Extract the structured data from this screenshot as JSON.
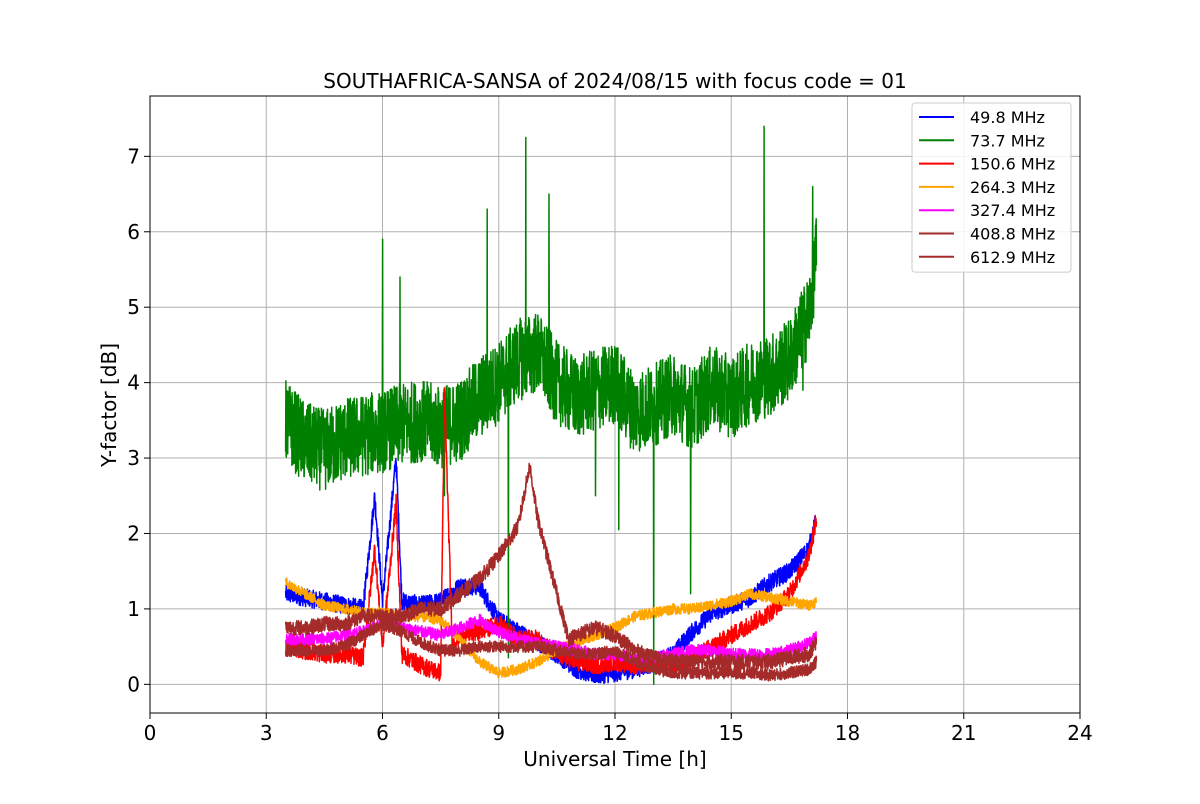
{
  "chart_data": {
    "type": "line",
    "title": "SOUTHAFRICA-SANSA of 2024/08/15 with focus code = 01",
    "xlabel": "Universal Time [h]",
    "ylabel": "Y-factor [dB]",
    "xlim": [
      0,
      24
    ],
    "ylim": [
      -0.38,
      7.8
    ],
    "xticks": [
      0,
      3,
      6,
      9,
      12,
      15,
      18,
      21,
      24
    ],
    "yticks": [
      0,
      1,
      2,
      3,
      4,
      5,
      6,
      7
    ],
    "grid": true,
    "legend_position": "top-right",
    "series": [
      {
        "name": " 49.8 MHz",
        "color": "#0000ff",
        "points": [
          [
            3.5,
            1.2
          ],
          [
            4.0,
            1.15
          ],
          [
            4.5,
            1.1
          ],
          [
            5.0,
            1.05
          ],
          [
            5.5,
            1.0
          ],
          [
            5.8,
            2.5
          ],
          [
            6.0,
            1.1
          ],
          [
            6.35,
            3.0
          ],
          [
            6.5,
            1.1
          ],
          [
            7.0,
            1.05
          ],
          [
            7.5,
            1.1
          ],
          [
            8.0,
            1.3
          ],
          [
            8.5,
            1.3
          ],
          [
            9.0,
            0.85
          ],
          [
            9.5,
            0.7
          ],
          [
            10.0,
            0.55
          ],
          [
            10.5,
            0.4
          ],
          [
            11.0,
            0.2
          ],
          [
            11.5,
            0.12
          ],
          [
            12.0,
            0.15
          ],
          [
            12.5,
            0.2
          ],
          [
            13.0,
            0.28
          ],
          [
            13.5,
            0.4
          ],
          [
            14.0,
            0.7
          ],
          [
            14.5,
            0.95
          ],
          [
            15.0,
            1.05
          ],
          [
            15.5,
            1.15
          ],
          [
            16.0,
            1.35
          ],
          [
            16.5,
            1.5
          ],
          [
            17.0,
            1.8
          ],
          [
            17.2,
            2.2
          ]
        ],
        "noise": 0.12
      },
      {
        "name": " 73.7 MHz",
        "color": "#008000",
        "points": [
          [
            3.5,
            3.5
          ],
          [
            4.0,
            3.2
          ],
          [
            4.5,
            3.1
          ],
          [
            5.0,
            3.25
          ],
          [
            5.5,
            3.3
          ],
          [
            6.0,
            3.35
          ],
          [
            6.5,
            3.45
          ],
          [
            7.0,
            3.5
          ],
          [
            7.5,
            3.4
          ],
          [
            8.0,
            3.5
          ],
          [
            8.5,
            3.8
          ],
          [
            9.0,
            4.0
          ],
          [
            9.5,
            4.3
          ],
          [
            10.0,
            4.4
          ],
          [
            10.5,
            4.0
          ],
          [
            11.0,
            3.8
          ],
          [
            11.5,
            3.9
          ],
          [
            12.0,
            4.0
          ],
          [
            12.5,
            3.6
          ],
          [
            13.0,
            3.7
          ],
          [
            13.5,
            3.85
          ],
          [
            14.0,
            3.65
          ],
          [
            14.5,
            3.95
          ],
          [
            15.0,
            3.8
          ],
          [
            15.5,
            4.0
          ],
          [
            16.0,
            4.1
          ],
          [
            16.5,
            4.3
          ],
          [
            17.0,
            4.9
          ],
          [
            17.2,
            5.7
          ]
        ],
        "noise": 0.55,
        "spikes": [
          [
            6.0,
            5.9
          ],
          [
            6.45,
            5.4
          ],
          [
            7.6,
            2.5
          ],
          [
            8.7,
            6.3
          ],
          [
            9.25,
            0.35
          ],
          [
            9.7,
            7.25
          ],
          [
            10.3,
            6.5
          ],
          [
            11.5,
            2.5
          ],
          [
            12.1,
            2.05
          ],
          [
            13.0,
            0.0
          ],
          [
            13.95,
            1.2
          ],
          [
            15.85,
            7.4
          ],
          [
            16.85,
            3.9
          ],
          [
            17.1,
            6.6
          ]
        ]
      },
      {
        "name": "150.6 MHz",
        "color": "#ff0000",
        "points": [
          [
            3.5,
            0.5
          ],
          [
            4.0,
            0.45
          ],
          [
            4.5,
            0.4
          ],
          [
            5.0,
            0.4
          ],
          [
            5.5,
            0.35
          ],
          [
            5.8,
            1.8
          ],
          [
            6.0,
            0.5
          ],
          [
            6.35,
            2.4
          ],
          [
            6.5,
            0.4
          ],
          [
            7.0,
            0.25
          ],
          [
            7.5,
            0.15
          ],
          [
            7.6,
            3.9
          ],
          [
            7.8,
            0.5
          ],
          [
            8.0,
            0.65
          ],
          [
            8.5,
            0.7
          ],
          [
            9.0,
            0.8
          ],
          [
            9.5,
            0.6
          ],
          [
            10.0,
            0.6
          ],
          [
            10.5,
            0.4
          ],
          [
            11.0,
            0.3
          ],
          [
            11.5,
            0.25
          ],
          [
            12.0,
            0.3
          ],
          [
            12.5,
            0.25
          ],
          [
            13.0,
            0.3
          ],
          [
            13.5,
            0.25
          ],
          [
            14.0,
            0.35
          ],
          [
            14.5,
            0.5
          ],
          [
            15.0,
            0.65
          ],
          [
            15.5,
            0.8
          ],
          [
            16.0,
            0.95
          ],
          [
            16.5,
            1.2
          ],
          [
            17.0,
            1.7
          ],
          [
            17.2,
            2.2
          ]
        ],
        "noise": 0.12
      },
      {
        "name": "264.3 MHz",
        "color": "#ffa500",
        "points": [
          [
            3.5,
            1.35
          ],
          [
            4.0,
            1.2
          ],
          [
            4.5,
            1.05
          ],
          [
            5.0,
            1.0
          ],
          [
            5.5,
            0.95
          ],
          [
            6.0,
            0.95
          ],
          [
            6.5,
            0.9
          ],
          [
            7.0,
            0.9
          ],
          [
            7.5,
            0.85
          ],
          [
            8.0,
            0.6
          ],
          [
            8.5,
            0.3
          ],
          [
            9.0,
            0.15
          ],
          [
            9.5,
            0.2
          ],
          [
            10.0,
            0.3
          ],
          [
            10.5,
            0.45
          ],
          [
            11.0,
            0.55
          ],
          [
            11.5,
            0.65
          ],
          [
            12.0,
            0.75
          ],
          [
            12.5,
            0.9
          ],
          [
            13.0,
            0.95
          ],
          [
            13.5,
            1.0
          ],
          [
            14.0,
            1.0
          ],
          [
            14.5,
            1.05
          ],
          [
            15.0,
            1.1
          ],
          [
            15.5,
            1.2
          ],
          [
            16.0,
            1.15
          ],
          [
            16.5,
            1.1
          ],
          [
            17.0,
            1.05
          ],
          [
            17.2,
            1.1
          ]
        ],
        "noise": 0.07
      },
      {
        "name": "327.4 MHz",
        "color": "#ff00ff",
        "points": [
          [
            3.5,
            0.6
          ],
          [
            4.0,
            0.6
          ],
          [
            4.5,
            0.6
          ],
          [
            5.0,
            0.65
          ],
          [
            5.5,
            0.7
          ],
          [
            6.0,
            0.8
          ],
          [
            6.5,
            0.75
          ],
          [
            7.0,
            0.7
          ],
          [
            7.5,
            0.65
          ],
          [
            8.0,
            0.75
          ],
          [
            8.5,
            0.85
          ],
          [
            9.0,
            0.7
          ],
          [
            9.5,
            0.6
          ],
          [
            10.0,
            0.55
          ],
          [
            10.5,
            0.5
          ],
          [
            11.0,
            0.45
          ],
          [
            11.5,
            0.4
          ],
          [
            12.0,
            0.4
          ],
          [
            12.5,
            0.35
          ],
          [
            13.0,
            0.35
          ],
          [
            13.5,
            0.4
          ],
          [
            14.0,
            0.45
          ],
          [
            14.5,
            0.45
          ],
          [
            15.0,
            0.4
          ],
          [
            15.5,
            0.4
          ],
          [
            16.0,
            0.4
          ],
          [
            16.5,
            0.45
          ],
          [
            17.0,
            0.55
          ],
          [
            17.2,
            0.65
          ]
        ],
        "noise": 0.08
      },
      {
        "name": "408.8 MHz",
        "color": "#a52a2a",
        "points": [
          [
            3.5,
            0.75
          ],
          [
            4.0,
            0.75
          ],
          [
            4.5,
            0.8
          ],
          [
            5.0,
            0.8
          ],
          [
            5.5,
            0.9
          ],
          [
            6.0,
            0.9
          ],
          [
            6.5,
            0.9
          ],
          [
            7.0,
            1.0
          ],
          [
            7.5,
            1.0
          ],
          [
            8.0,
            1.2
          ],
          [
            8.5,
            1.4
          ],
          [
            9.0,
            1.7
          ],
          [
            9.5,
            2.1
          ],
          [
            9.8,
            2.9
          ],
          [
            10.0,
            2.2
          ],
          [
            10.5,
            1.2
          ],
          [
            10.8,
            0.6
          ],
          [
            11.0,
            0.65
          ],
          [
            11.5,
            0.75
          ],
          [
            12.0,
            0.65
          ],
          [
            12.5,
            0.45
          ],
          [
            13.0,
            0.35
          ],
          [
            13.5,
            0.3
          ],
          [
            14.0,
            0.3
          ],
          [
            14.5,
            0.3
          ],
          [
            15.0,
            0.3
          ],
          [
            15.5,
            0.3
          ],
          [
            16.0,
            0.3
          ],
          [
            16.5,
            0.35
          ],
          [
            17.0,
            0.4
          ],
          [
            17.2,
            0.55
          ]
        ],
        "noise": 0.1
      },
      {
        "name": "612.9 MHz",
        "color": "#a52a2a",
        "points": [
          [
            3.5,
            0.45
          ],
          [
            4.0,
            0.45
          ],
          [
            4.5,
            0.45
          ],
          [
            5.0,
            0.5
          ],
          [
            5.5,
            0.65
          ],
          [
            6.0,
            0.8
          ],
          [
            6.5,
            0.7
          ],
          [
            7.0,
            0.55
          ],
          [
            7.5,
            0.45
          ],
          [
            8.0,
            0.45
          ],
          [
            8.5,
            0.5
          ],
          [
            9.0,
            0.5
          ],
          [
            9.5,
            0.5
          ],
          [
            10.0,
            0.5
          ],
          [
            10.5,
            0.45
          ],
          [
            11.0,
            0.4
          ],
          [
            11.5,
            0.4
          ],
          [
            12.0,
            0.45
          ],
          [
            12.5,
            0.3
          ],
          [
            13.0,
            0.2
          ],
          [
            13.5,
            0.15
          ],
          [
            14.0,
            0.15
          ],
          [
            14.5,
            0.15
          ],
          [
            15.0,
            0.15
          ],
          [
            15.5,
            0.15
          ],
          [
            16.0,
            0.12
          ],
          [
            16.5,
            0.15
          ],
          [
            17.0,
            0.2
          ],
          [
            17.2,
            0.3
          ]
        ],
        "noise": 0.08
      }
    ]
  }
}
